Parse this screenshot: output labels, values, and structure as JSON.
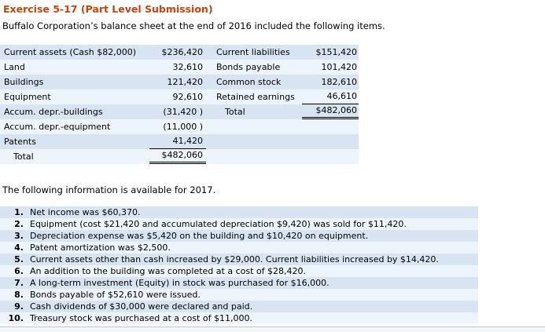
{
  "page": {
    "title": "Exercise 5-17 (Part Level Submission)",
    "intro": "Buffalo Corporation’s balance sheet at the end of 2016 included the following items.",
    "info_heading": "The following information is available for 2017."
  },
  "colors": {
    "title_text": "#c5440e",
    "row_shaded": "#d9e4f2",
    "row_light": "#eef4fb",
    "body_text": "#000000",
    "next_section_border": "#c6c6c6",
    "next_section_bg": "#f3f7fc"
  },
  "balance_sheet": {
    "rows": [
      {
        "left_label": "Current assets (Cash $82,000)",
        "left_value": "$236,420",
        "right_label": "Current liabilities",
        "right_value": "$151,420"
      },
      {
        "left_label": "Land",
        "left_value": "32,610",
        "right_label": "Bonds payable",
        "right_value": "101,420"
      },
      {
        "left_label": "Buildings",
        "left_value": "121,420",
        "right_label": "Common stock",
        "right_value": "182,610"
      },
      {
        "left_label": "Equipment",
        "left_value": "92,610",
        "right_label": "Retained earnings",
        "right_value": "46,610"
      },
      {
        "left_label": "Accum. depr.-buildings",
        "left_value": "(31,420 )",
        "right_label": "Total",
        "right_value": "$482,060"
      },
      {
        "left_label": "Accum. depr.-equipment",
        "left_value": "(11,000 )",
        "right_label": "",
        "right_value": ""
      },
      {
        "left_label": "Patents",
        "left_value": "41,420",
        "right_label": "",
        "right_value": ""
      },
      {
        "left_label": "Total",
        "left_value": "$482,060",
        "right_label": "",
        "right_value": ""
      }
    ]
  },
  "notes": {
    "items": [
      {
        "num": "1.",
        "text": "Net income was $60,370."
      },
      {
        "num": "2.",
        "text": "Equipment (cost $21,420 and accumulated depreciation $9,420) was sold for $11,420."
      },
      {
        "num": "3.",
        "text": "Depreciation expense was $5,420 on the building and $10,420 on equipment."
      },
      {
        "num": "4.",
        "text": "Patent amortization was $2,500."
      },
      {
        "num": "5.",
        "text": "Current assets other than cash increased by $29,000. Current liabilities increased by $14,420."
      },
      {
        "num": "6.",
        "text": "An addition to the building was completed at a cost of $28,420."
      },
      {
        "num": "7.",
        "text": "A long-term investment (Equity) in stock was purchased for $16,000."
      },
      {
        "num": "8.",
        "text": "Bonds payable of $52,610 were issued."
      },
      {
        "num": "9.",
        "text": "Cash dividends of $30,000 were declared and paid."
      },
      {
        "num": "10.",
        "text": "Treasury stock was purchased at a cost of $11,000."
      }
    ]
  }
}
